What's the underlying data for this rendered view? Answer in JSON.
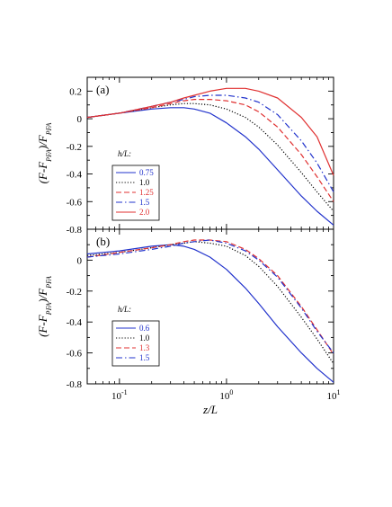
{
  "chart_data": [
    {
      "type": "line",
      "panel_label": "(a)",
      "xlabel": "z/L",
      "ylabel": "(F-F_PFA)/F_PFA",
      "xscale": "log",
      "xlim": [
        0.05,
        10
      ],
      "ylim": [
        -0.8,
        0.3
      ],
      "x_ticks": [
        0.1,
        1,
        10
      ],
      "x_tick_labels": [
        "10^-1",
        "10^0",
        "10^1"
      ],
      "y_ticks": [
        0.2,
        0,
        -0.2,
        -0.4,
        -0.6,
        -0.8
      ],
      "y_tick_labels": [
        "0.2",
        "0",
        "-0.2",
        "-0.4",
        "-0.6",
        "-0.8"
      ],
      "legend_title": "h/L:",
      "legend_position": "lower-left",
      "x": [
        0.05,
        0.1,
        0.2,
        0.3,
        0.4,
        0.5,
        0.7,
        1,
        1.5,
        2,
        3,
        5,
        7,
        10
      ],
      "series": [
        {
          "name": "0.75",
          "color": "#2233cc",
          "dash": "solid",
          "values": [
            0.01,
            0.04,
            0.07,
            0.08,
            0.08,
            0.07,
            0.04,
            -0.03,
            -0.13,
            -0.22,
            -0.37,
            -0.56,
            -0.67,
            -0.77
          ]
        },
        {
          "name": "1.0",
          "color": "#000000",
          "dash": "dotted",
          "values": [
            0.01,
            0.04,
            0.08,
            0.1,
            0.11,
            0.11,
            0.1,
            0.07,
            0.01,
            -0.06,
            -0.19,
            -0.39,
            -0.53,
            -0.67
          ]
        },
        {
          "name": "1.25",
          "color": "#e03030",
          "dash": "dashed",
          "values": [
            0.01,
            0.04,
            0.08,
            0.11,
            0.13,
            0.14,
            0.14,
            0.13,
            0.1,
            0.05,
            -0.06,
            -0.26,
            -0.42,
            -0.6
          ]
        },
        {
          "name": "1.5",
          "color": "#2233cc",
          "dash": "dashdot",
          "values": [
            0.01,
            0.04,
            0.09,
            0.12,
            0.14,
            0.16,
            0.17,
            0.17,
            0.15,
            0.12,
            0.03,
            -0.16,
            -0.32,
            -0.53
          ]
        },
        {
          "name": "2.0",
          "color": "#e03030",
          "dash": "solid",
          "values": [
            0.01,
            0.04,
            0.09,
            0.12,
            0.15,
            0.17,
            0.2,
            0.22,
            0.22,
            0.2,
            0.15,
            0.01,
            -0.13,
            -0.41
          ]
        }
      ]
    },
    {
      "type": "line",
      "panel_label": "(b)",
      "xlabel": "z/L",
      "ylabel": "(F-F_PFA)/F_PFA",
      "xscale": "log",
      "xlim": [
        0.05,
        10
      ],
      "ylim": [
        -0.8,
        0.2
      ],
      "x_ticks": [
        0.1,
        1,
        10
      ],
      "x_tick_labels": [
        "10^-1",
        "10^0",
        "10^1"
      ],
      "y_ticks": [
        0,
        -0.2,
        -0.4,
        -0.6,
        -0.8
      ],
      "y_tick_labels": [
        "0",
        "-0.2",
        "-0.4",
        "-0.6",
        "-0.8"
      ],
      "legend_title": "h/L:",
      "legend_position": "lower-left",
      "x": [
        0.05,
        0.1,
        0.2,
        0.3,
        0.4,
        0.5,
        0.7,
        1,
        1.5,
        2,
        3,
        5,
        7,
        10
      ],
      "series": [
        {
          "name": "0.6",
          "color": "#2233cc",
          "dash": "solid",
          "values": [
            0.04,
            0.06,
            0.09,
            0.1,
            0.09,
            0.07,
            0.02,
            -0.06,
            -0.18,
            -0.28,
            -0.43,
            -0.6,
            -0.7,
            -0.79
          ]
        },
        {
          "name": "1.0",
          "color": "#000000",
          "dash": "dotted",
          "values": [
            0.03,
            0.05,
            0.08,
            0.1,
            0.11,
            0.12,
            0.11,
            0.09,
            0.03,
            -0.04,
            -0.17,
            -0.37,
            -0.51,
            -0.67
          ]
        },
        {
          "name": "1.3",
          "color": "#e03030",
          "dash": "dashed",
          "values": [
            0.02,
            0.05,
            0.08,
            0.1,
            0.12,
            0.13,
            0.13,
            0.12,
            0.07,
            0.01,
            -0.1,
            -0.3,
            -0.45,
            -0.61
          ]
        },
        {
          "name": "1.5",
          "color": "#2233cc",
          "dash": "dashdot",
          "values": [
            0.02,
            0.04,
            0.07,
            0.09,
            0.11,
            0.12,
            0.13,
            0.11,
            0.06,
            0,
            -0.11,
            -0.31,
            -0.46,
            -0.6
          ]
        }
      ]
    }
  ]
}
